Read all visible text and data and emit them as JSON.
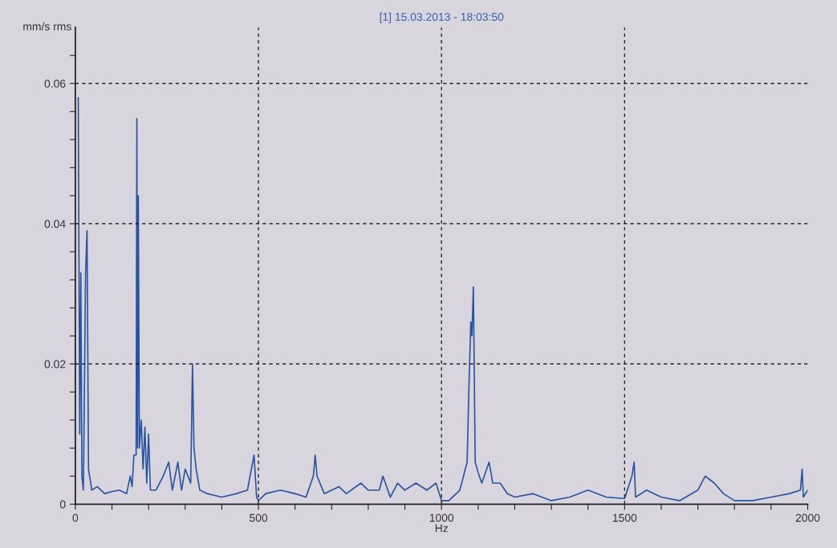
{
  "chart_data": {
    "type": "line",
    "title": "[1] 15.03.2013 - 18:03:50",
    "xlabel": "Hz",
    "ylabel": "mm/s rms",
    "xlim": [
      0,
      2000
    ],
    "ylim": [
      0,
      0.068
    ],
    "xticks": [
      0,
      {
        "value": 100,
        "label": null
      },
      {
        "value": 200,
        "label": null
      },
      {
        "value": 300,
        "label": null
      },
      {
        "value": 400,
        "label": null
      },
      500,
      {
        "value": 600,
        "label": null
      },
      {
        "value": 700,
        "label": null
      },
      {
        "value": 800,
        "label": null
      },
      {
        "value": 900,
        "label": null
      },
      1000,
      {
        "value": 1100,
        "label": null
      },
      {
        "value": 1200,
        "label": null
      },
      {
        "value": 1300,
        "label": null
      },
      {
        "value": 1400,
        "label": null
      },
      1500,
      {
        "value": 1600,
        "label": null
      },
      {
        "value": 1700,
        "label": null
      },
      {
        "value": 1800,
        "label": null
      },
      {
        "value": 1900,
        "label": null
      },
      2000
    ],
    "yticks": [
      0,
      {
        "value": 0.004,
        "label": null
      },
      {
        "value": 0.008,
        "label": null
      },
      {
        "value": 0.012,
        "label": null
      },
      {
        "value": 0.016,
        "label": null
      },
      0.02,
      {
        "value": 0.024,
        "label": null
      },
      {
        "value": 0.028,
        "label": null
      },
      {
        "value": 0.032,
        "label": null
      },
      {
        "value": 0.036,
        "label": null
      },
      0.04,
      {
        "value": 0.044,
        "label": null
      },
      {
        "value": 0.048,
        "label": null
      },
      {
        "value": 0.052,
        "label": null
      },
      {
        "value": 0.056,
        "label": null
      },
      0.06,
      {
        "value": 0.064,
        "label": null
      }
    ],
    "grid": true,
    "line_style": "solid",
    "marker": "none",
    "series": [
      {
        "color": "#2b54a0",
        "x": [
          8,
          12,
          15,
          18,
          22,
          28,
          32,
          36,
          45,
          60,
          80,
          100,
          120,
          140,
          150,
          155,
          160,
          166,
          168,
          170,
          172,
          175,
          180,
          185,
          190,
          195,
          200,
          205,
          220,
          240,
          255,
          265,
          280,
          290,
          300,
          315,
          320,
          324,
          330,
          340,
          360,
          400,
          440,
          470,
          488,
          495,
          500,
          520,
          560,
          600,
          630,
          650,
          655,
          660,
          680,
          700,
          720,
          740,
          780,
          800,
          830,
          840,
          860,
          880,
          900,
          930,
          960,
          985,
          1000,
          1020,
          1050,
          1070,
          1075,
          1080,
          1083,
          1087,
          1092,
          1100,
          1110,
          1130,
          1140,
          1160,
          1180,
          1200,
          1250,
          1300,
          1350,
          1400,
          1450,
          1500,
          1520,
          1526,
          1530,
          1560,
          1600,
          1650,
          1700,
          1720,
          1745,
          1770,
          1800,
          1850,
          1900,
          1950,
          1980,
          1985,
          1988,
          2000
        ],
        "values": [
          0.058,
          0.01,
          0.033,
          0.004,
          0.002,
          0.033,
          0.039,
          0.005,
          0.002,
          0.0025,
          0.0015,
          0.0018,
          0.002,
          0.0015,
          0.004,
          0.0025,
          0.007,
          0.007,
          0.055,
          0.008,
          0.044,
          0.008,
          0.012,
          0.005,
          0.011,
          0.003,
          0.01,
          0.002,
          0.002,
          0.004,
          0.006,
          0.002,
          0.006,
          0.002,
          0.005,
          0.003,
          0.02,
          0.008,
          0.005,
          0.002,
          0.0015,
          0.001,
          0.0015,
          0.002,
          0.007,
          0.001,
          0.0005,
          0.0015,
          0.002,
          0.0015,
          0.001,
          0.004,
          0.007,
          0.004,
          0.0015,
          0.002,
          0.0025,
          0.0015,
          0.003,
          0.002,
          0.002,
          0.004,
          0.001,
          0.003,
          0.002,
          0.003,
          0.002,
          0.003,
          0.0005,
          0.0005,
          0.002,
          0.006,
          0.017,
          0.026,
          0.024,
          0.031,
          0.006,
          0.0045,
          0.003,
          0.006,
          0.003,
          0.003,
          0.0015,
          0.001,
          0.0015,
          0.0005,
          0.001,
          0.002,
          0.001,
          0.0008,
          0.004,
          0.006,
          0.001,
          0.002,
          0.001,
          0.0005,
          0.002,
          0.004,
          0.003,
          0.0015,
          0.0005,
          0.0005,
          0.001,
          0.0015,
          0.002,
          0.005,
          0.001,
          0.002
        ]
      }
    ]
  }
}
